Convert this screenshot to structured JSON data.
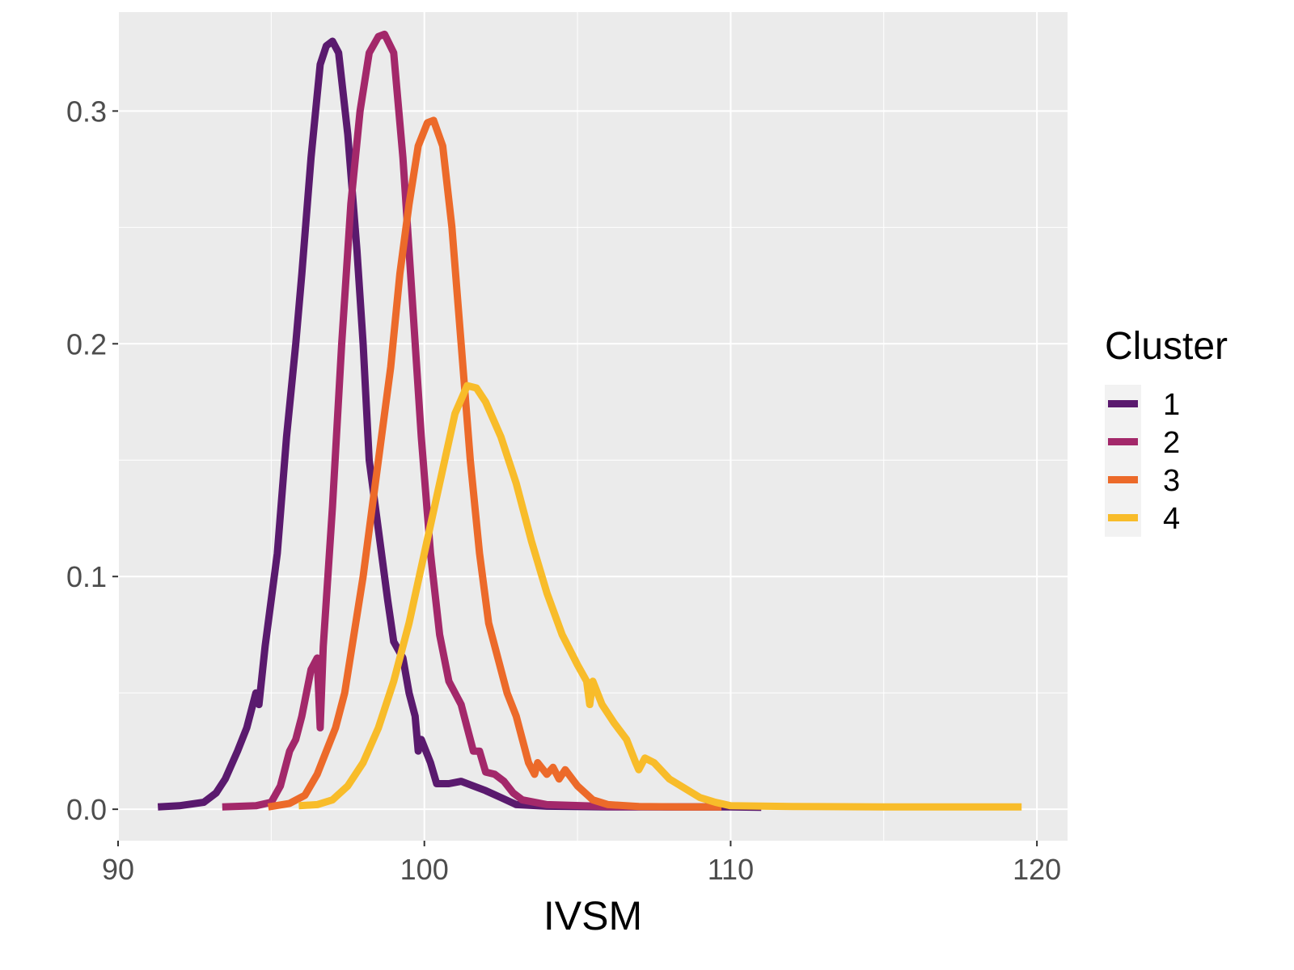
{
  "chart_data": {
    "type": "line",
    "title": "",
    "xlabel": "IVSM",
    "ylabel": "",
    "xlim": [
      90.0,
      121.0
    ],
    "ylim": [
      -0.0135,
      0.3425
    ],
    "x_ticks": [
      "90",
      "100",
      "110",
      "120"
    ],
    "x_tick_values": [
      90,
      100,
      110,
      120
    ],
    "y_ticks": [
      "0.0",
      "0.1",
      "0.2",
      "0.3"
    ],
    "y_tick_values": [
      0.0,
      0.1,
      0.2,
      0.3
    ],
    "grid": true,
    "legend": {
      "title": "Cluster",
      "placement": "right"
    },
    "series": [
      {
        "name": "1",
        "color": "#5A1A6E",
        "points": [
          [
            91.3,
            0.001
          ],
          [
            92.0,
            0.0015
          ],
          [
            92.8,
            0.003
          ],
          [
            93.2,
            0.007
          ],
          [
            93.5,
            0.013
          ],
          [
            93.9,
            0.025
          ],
          [
            94.2,
            0.035
          ],
          [
            94.5,
            0.05
          ],
          [
            94.6,
            0.045
          ],
          [
            94.8,
            0.07
          ],
          [
            95.2,
            0.11
          ],
          [
            95.5,
            0.16
          ],
          [
            95.8,
            0.2
          ],
          [
            96.0,
            0.23
          ],
          [
            96.3,
            0.28
          ],
          [
            96.6,
            0.32
          ],
          [
            96.8,
            0.328
          ],
          [
            97.0,
            0.33
          ],
          [
            97.2,
            0.325
          ],
          [
            97.5,
            0.29
          ],
          [
            97.8,
            0.24
          ],
          [
            98.0,
            0.2
          ],
          [
            98.2,
            0.15
          ],
          [
            98.5,
            0.12
          ],
          [
            98.8,
            0.09
          ],
          [
            99.0,
            0.072
          ],
          [
            99.3,
            0.065
          ],
          [
            99.5,
            0.05
          ],
          [
            99.7,
            0.04
          ],
          [
            99.8,
            0.025
          ],
          [
            99.9,
            0.03
          ],
          [
            100.2,
            0.02
          ],
          [
            100.4,
            0.011
          ],
          [
            100.8,
            0.011
          ],
          [
            101.2,
            0.012
          ],
          [
            101.6,
            0.01
          ],
          [
            102.0,
            0.008
          ],
          [
            102.5,
            0.005
          ],
          [
            103.0,
            0.002
          ],
          [
            104.0,
            0.0013
          ],
          [
            106.0,
            0.001
          ],
          [
            108.0,
            0.001
          ],
          [
            110.0,
            0.001
          ],
          [
            111.0,
            0.0008
          ]
        ]
      },
      {
        "name": "2",
        "color": "#A3286A",
        "points": [
          [
            93.4,
            0.001
          ],
          [
            94.5,
            0.0015
          ],
          [
            95.0,
            0.003
          ],
          [
            95.3,
            0.01
          ],
          [
            95.6,
            0.025
          ],
          [
            95.8,
            0.03
          ],
          [
            96.0,
            0.04
          ],
          [
            96.3,
            0.06
          ],
          [
            96.5,
            0.065
          ],
          [
            96.6,
            0.035
          ],
          [
            96.7,
            0.07
          ],
          [
            97.0,
            0.13
          ],
          [
            97.3,
            0.2
          ],
          [
            97.6,
            0.26
          ],
          [
            97.9,
            0.3
          ],
          [
            98.2,
            0.325
          ],
          [
            98.5,
            0.332
          ],
          [
            98.7,
            0.333
          ],
          [
            99.0,
            0.325
          ],
          [
            99.3,
            0.28
          ],
          [
            99.6,
            0.22
          ],
          [
            99.9,
            0.16
          ],
          [
            100.2,
            0.11
          ],
          [
            100.5,
            0.075
          ],
          [
            100.8,
            0.055
          ],
          [
            101.0,
            0.05
          ],
          [
            101.2,
            0.045
          ],
          [
            101.4,
            0.035
          ],
          [
            101.6,
            0.025
          ],
          [
            101.8,
            0.025
          ],
          [
            102.0,
            0.016
          ],
          [
            102.3,
            0.015
          ],
          [
            102.6,
            0.012
          ],
          [
            102.9,
            0.007
          ],
          [
            103.2,
            0.004
          ],
          [
            104.0,
            0.002
          ],
          [
            106.0,
            0.0012
          ],
          [
            108.0,
            0.001
          ],
          [
            109.7,
            0.001
          ]
        ]
      },
      {
        "name": "3",
        "color": "#EC6A2A",
        "points": [
          [
            94.9,
            0.001
          ],
          [
            95.6,
            0.0025
          ],
          [
            96.1,
            0.006
          ],
          [
            96.5,
            0.015
          ],
          [
            96.8,
            0.025
          ],
          [
            97.1,
            0.035
          ],
          [
            97.4,
            0.05
          ],
          [
            97.7,
            0.075
          ],
          [
            98.0,
            0.1
          ],
          [
            98.3,
            0.13
          ],
          [
            98.6,
            0.16
          ],
          [
            98.9,
            0.19
          ],
          [
            99.2,
            0.23
          ],
          [
            99.5,
            0.26
          ],
          [
            99.8,
            0.285
          ],
          [
            100.1,
            0.295
          ],
          [
            100.3,
            0.296
          ],
          [
            100.6,
            0.285
          ],
          [
            100.9,
            0.25
          ],
          [
            101.2,
            0.2
          ],
          [
            101.5,
            0.15
          ],
          [
            101.8,
            0.11
          ],
          [
            102.1,
            0.08
          ],
          [
            102.4,
            0.065
          ],
          [
            102.7,
            0.05
          ],
          [
            103.0,
            0.04
          ],
          [
            103.2,
            0.03
          ],
          [
            103.4,
            0.02
          ],
          [
            103.6,
            0.015
          ],
          [
            103.7,
            0.02
          ],
          [
            104.0,
            0.015
          ],
          [
            104.2,
            0.018
          ],
          [
            104.4,
            0.013
          ],
          [
            104.6,
            0.017
          ],
          [
            105.0,
            0.01
          ],
          [
            105.5,
            0.004
          ],
          [
            106.0,
            0.002
          ],
          [
            107.0,
            0.0012
          ],
          [
            108.5,
            0.001
          ],
          [
            109.7,
            0.001
          ]
        ]
      },
      {
        "name": "4",
        "color": "#F8BC2A",
        "points": [
          [
            95.9,
            0.0015
          ],
          [
            96.5,
            0.002
          ],
          [
            97.0,
            0.004
          ],
          [
            97.5,
            0.01
          ],
          [
            98.0,
            0.02
          ],
          [
            98.5,
            0.035
          ],
          [
            99.0,
            0.055
          ],
          [
            99.5,
            0.08
          ],
          [
            100.0,
            0.11
          ],
          [
            100.5,
            0.14
          ],
          [
            101.0,
            0.17
          ],
          [
            101.4,
            0.182
          ],
          [
            101.7,
            0.181
          ],
          [
            102.0,
            0.175
          ],
          [
            102.5,
            0.16
          ],
          [
            103.0,
            0.14
          ],
          [
            103.5,
            0.115
          ],
          [
            104.0,
            0.093
          ],
          [
            104.5,
            0.075
          ],
          [
            105.0,
            0.062
          ],
          [
            105.3,
            0.055
          ],
          [
            105.4,
            0.045
          ],
          [
            105.5,
            0.055
          ],
          [
            105.8,
            0.045
          ],
          [
            106.2,
            0.037
          ],
          [
            106.6,
            0.03
          ],
          [
            106.9,
            0.02
          ],
          [
            107.0,
            0.017
          ],
          [
            107.2,
            0.022
          ],
          [
            107.5,
            0.02
          ],
          [
            108.0,
            0.013
          ],
          [
            108.5,
            0.009
          ],
          [
            109.0,
            0.005
          ],
          [
            109.5,
            0.003
          ],
          [
            110.0,
            0.0015
          ],
          [
            112.0,
            0.0012
          ],
          [
            115.0,
            0.001
          ],
          [
            119.5,
            0.001
          ]
        ]
      }
    ]
  }
}
